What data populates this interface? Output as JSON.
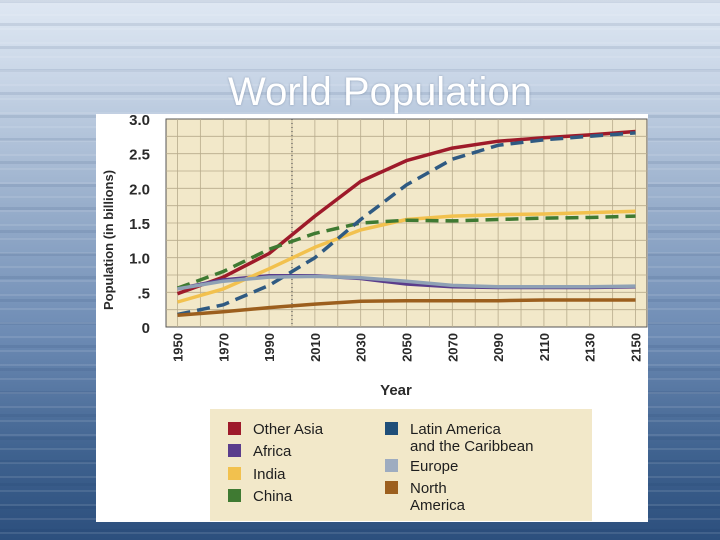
{
  "slide": {
    "title": "World Population"
  },
  "chart_data": {
    "type": "line",
    "title": "",
    "xlabel": "Year",
    "ylabel": "Population (in billions)",
    "x": [
      1950,
      1970,
      1990,
      2010,
      2030,
      2050,
      2070,
      2090,
      2110,
      2130,
      2150
    ],
    "x_tick_labels": [
      "1950",
      "1970",
      "1990",
      "2010",
      "2030",
      "2050",
      "2070",
      "2090",
      "2110",
      "2130",
      "2150"
    ],
    "y_tick_labels": [
      "0",
      ".5",
      "1.0",
      "1.5",
      "2.0",
      "2.5",
      "3.0"
    ],
    "y_ticks": [
      0,
      0.5,
      1.0,
      1.5,
      2.0,
      2.5,
      3.0
    ],
    "xlim": [
      1945,
      2155
    ],
    "ylim": [
      0,
      3.0
    ],
    "reference_line_x": 2000,
    "grid": true,
    "legend_position": "bottom",
    "series": [
      {
        "name": "Other Asia",
        "color": "#9e1a2a",
        "dash": "solid",
        "x": [
          1950,
          1970,
          1990,
          2010,
          2030,
          2050,
          2070,
          2090,
          2110,
          2130,
          2150
        ],
        "values": [
          0.48,
          0.72,
          1.06,
          1.6,
          2.1,
          2.4,
          2.58,
          2.68,
          2.73,
          2.77,
          2.82
        ]
      },
      {
        "name": "Africa",
        "color": "#5a3d8c",
        "dash": "solid",
        "x": [
          1950,
          1970,
          1990,
          2010,
          2030,
          2050,
          2070,
          2090,
          2110,
          2130,
          2150
        ],
        "values": [
          0.55,
          0.68,
          0.74,
          0.74,
          0.7,
          0.62,
          0.58,
          0.57,
          0.57,
          0.57,
          0.58
        ]
      },
      {
        "name": "India",
        "color": "#f2c14e",
        "dash": "solid",
        "x": [
          1950,
          1970,
          1990,
          2010,
          2030,
          2050,
          2070,
          2090,
          2110,
          2130,
          2150
        ],
        "values": [
          0.36,
          0.55,
          0.84,
          1.15,
          1.4,
          1.55,
          1.6,
          1.62,
          1.63,
          1.65,
          1.67
        ]
      },
      {
        "name": "China",
        "color": "#3f7a32",
        "dash": "dashed",
        "x": [
          1950,
          1970,
          1990,
          2010,
          2030,
          2050,
          2070,
          2090,
          2110,
          2130,
          2150
        ],
        "values": [
          0.56,
          0.8,
          1.12,
          1.35,
          1.5,
          1.54,
          1.53,
          1.55,
          1.57,
          1.58,
          1.6
        ]
      },
      {
        "name": "Latin America and the Caribbean",
        "color": "#2f5a82",
        "dash": "dashed",
        "x": [
          1950,
          1970,
          1990,
          2010,
          2030,
          2050,
          2070,
          2090,
          2110,
          2130,
          2150
        ],
        "values": [
          0.18,
          0.32,
          0.6,
          1.0,
          1.55,
          2.05,
          2.42,
          2.62,
          2.7,
          2.75,
          2.8
        ]
      },
      {
        "name": "Europe",
        "color": "#8fa1b5",
        "dash": "solid",
        "x": [
          1950,
          1970,
          1990,
          2010,
          2030,
          2050,
          2070,
          2090,
          2110,
          2130,
          2150
        ],
        "values": [
          0.55,
          0.66,
          0.72,
          0.73,
          0.71,
          0.66,
          0.6,
          0.58,
          0.58,
          0.58,
          0.59
        ]
      },
      {
        "name": "North America",
        "color": "#9c5f1e",
        "dash": "solid",
        "x": [
          1950,
          1970,
          1990,
          2010,
          2030,
          2050,
          2070,
          2090,
          2110,
          2130,
          2150
        ],
        "values": [
          0.17,
          0.22,
          0.28,
          0.33,
          0.37,
          0.38,
          0.38,
          0.38,
          0.39,
          0.39,
          0.39
        ]
      }
    ],
    "legend_entries": [
      {
        "name": "Other Asia",
        "lines": [
          "Other Asia"
        ],
        "color": "#9e1a2a"
      },
      {
        "name": "Africa",
        "lines": [
          "Africa"
        ],
        "color": "#5a3d8c"
      },
      {
        "name": "India",
        "lines": [
          "India"
        ],
        "color": "#f2c14e"
      },
      {
        "name": "China",
        "lines": [
          "China"
        ],
        "color": "#3f7a32"
      },
      {
        "name": "Latin America and the Caribbean",
        "lines": [
          "Latin America",
          "and the Caribbean"
        ],
        "color": "#1f4e79"
      },
      {
        "name": "Europe",
        "lines": [
          "Europe"
        ],
        "color": "#9eacc0"
      },
      {
        "name": "North America",
        "lines": [
          "North",
          "America"
        ],
        "color": "#9c5f1e"
      }
    ]
  }
}
